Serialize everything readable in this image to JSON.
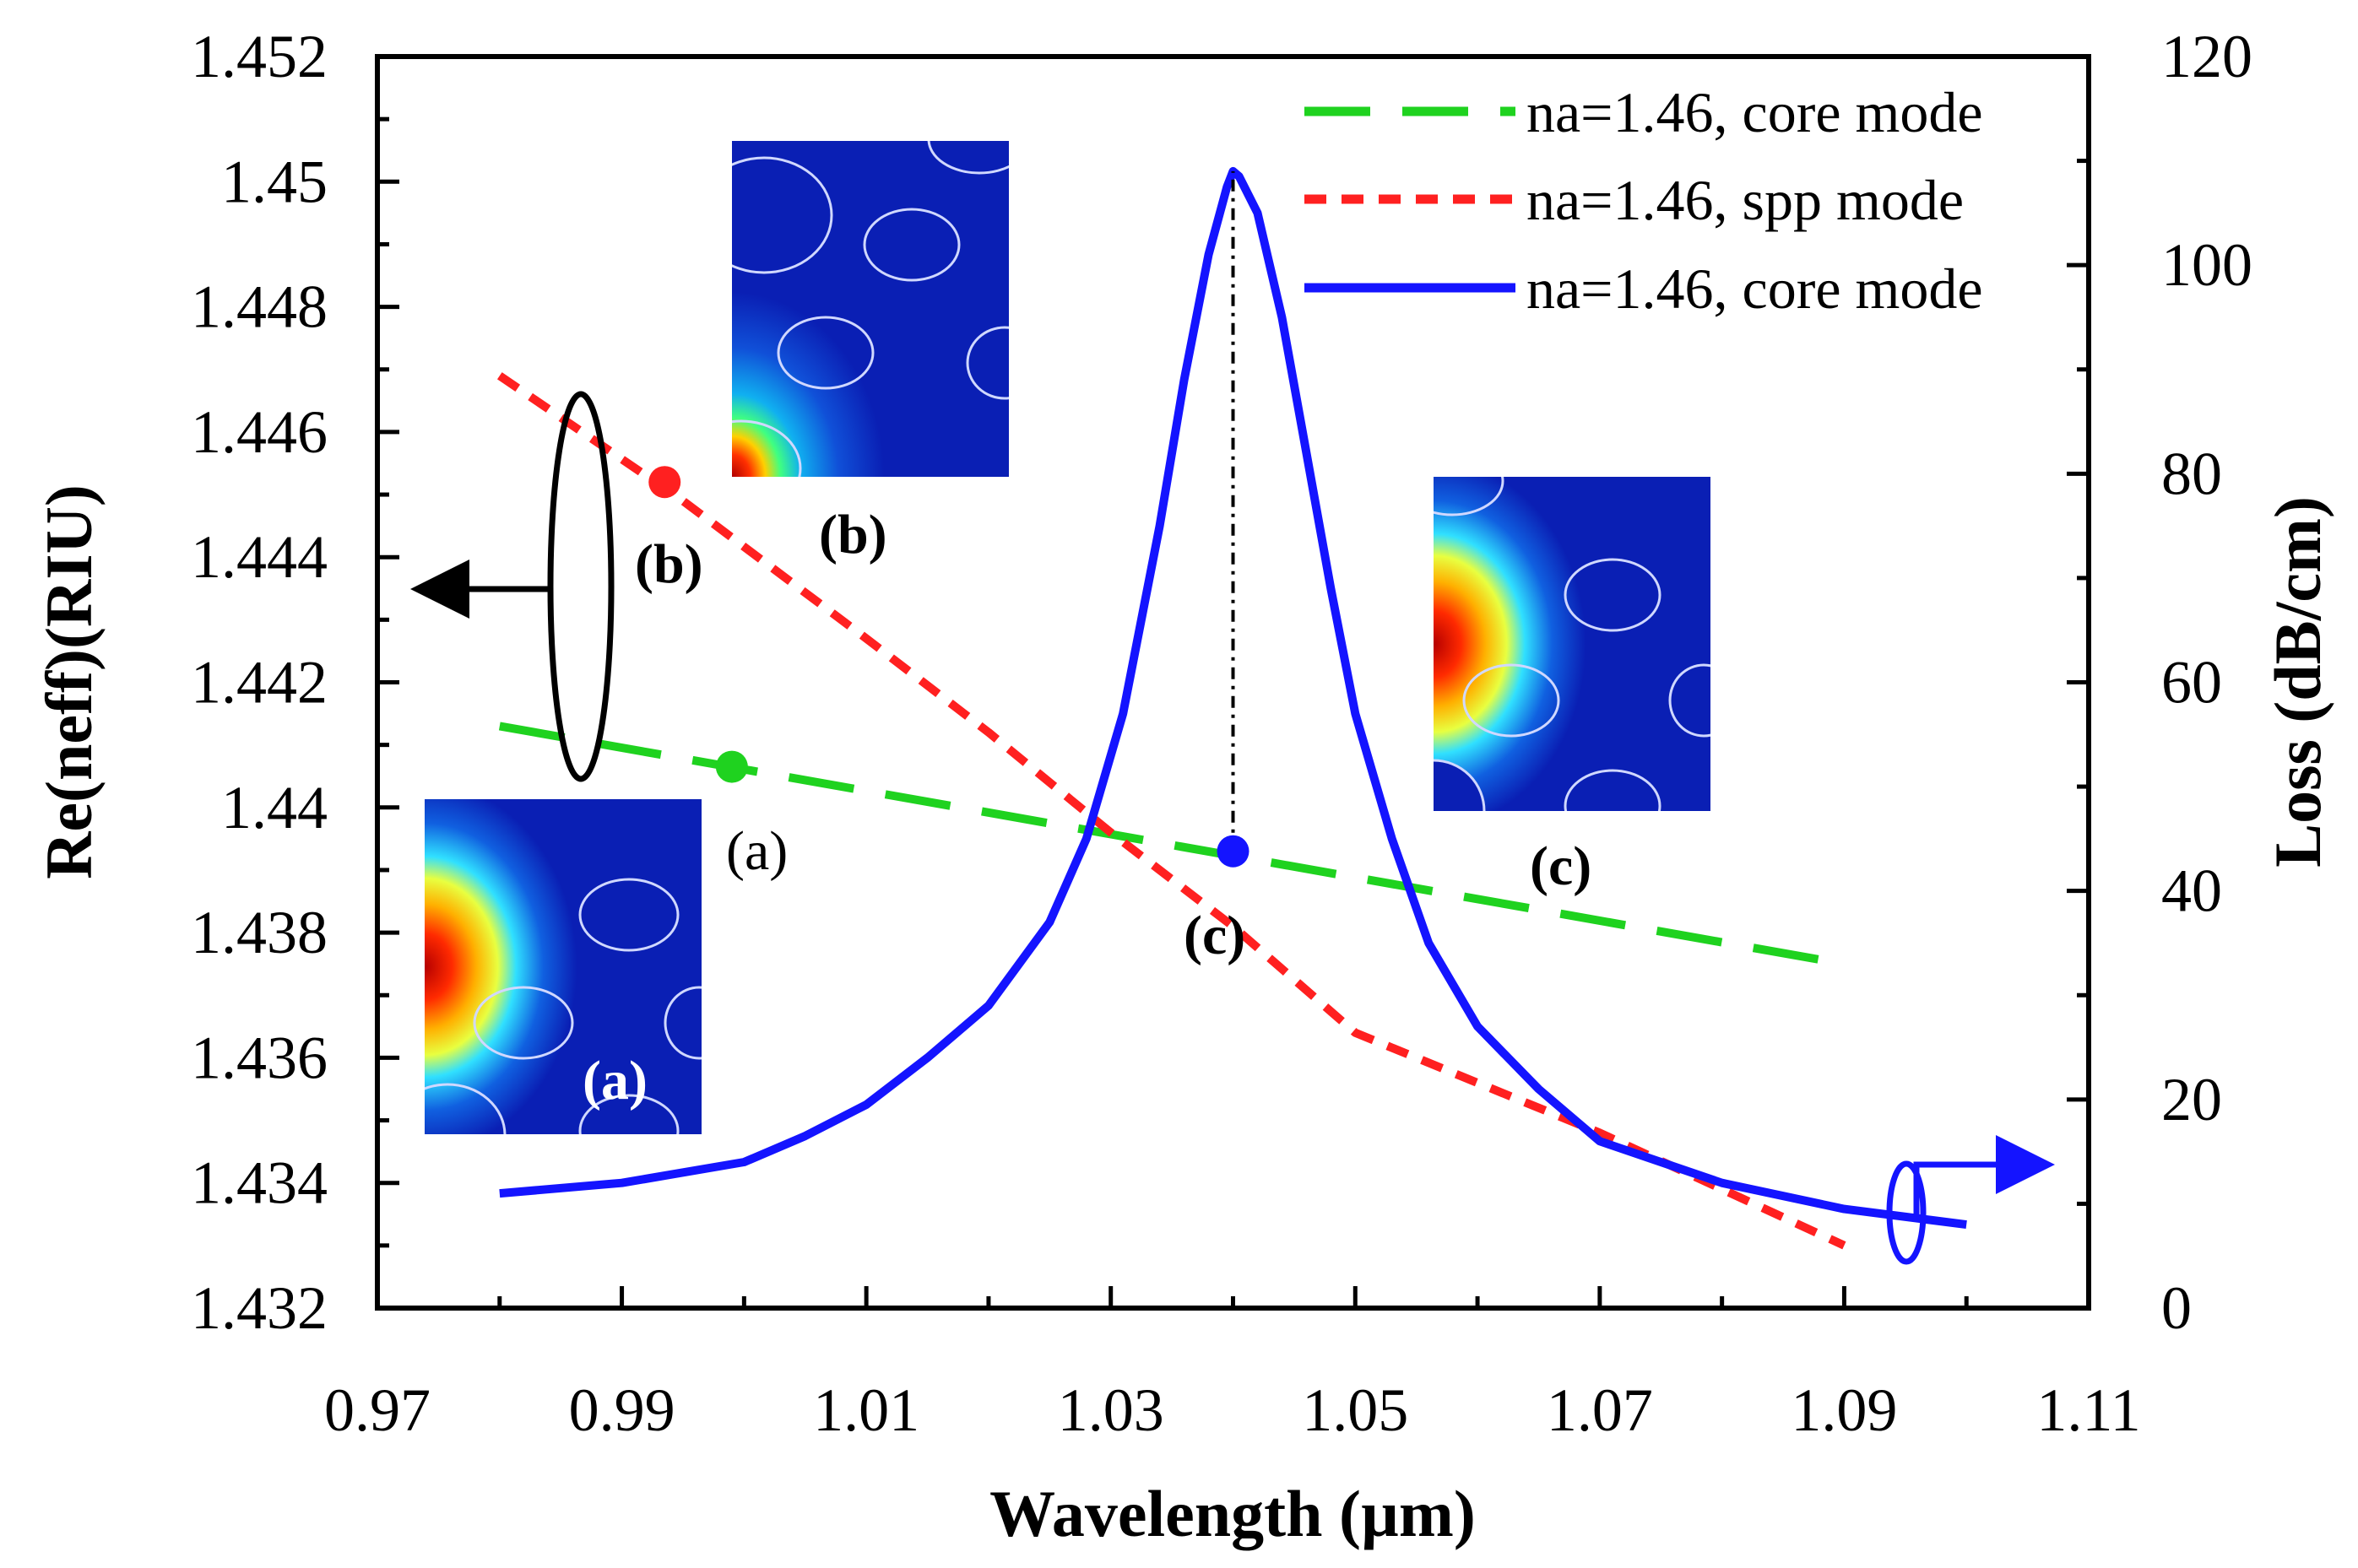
{
  "chart_data": {
    "type": "line",
    "xlabel": "Wavelength (µm)",
    "ylabel_left": "Re(neff)(RIU)",
    "ylabel_right": "Loss (dB/cm)",
    "xlim": [
      0.97,
      1.11
    ],
    "ylim_left": [
      1.432,
      1.452
    ],
    "ylim_right": [
      0,
      120
    ],
    "x_ticks": [
      0.97,
      0.99,
      1.01,
      1.03,
      1.05,
      1.07,
      1.09,
      1.11
    ],
    "x_tick_labels": [
      "0.97",
      "0.99",
      "1.01",
      "1.03",
      "1.05",
      "1.07",
      "1.09",
      "1.11"
    ],
    "y_left_ticks": [
      1.432,
      1.434,
      1.436,
      1.438,
      1.44,
      1.442,
      1.444,
      1.446,
      1.448,
      1.45,
      1.452
    ],
    "y_left_tick_labels": [
      "1.432",
      "1.434",
      "1.436",
      "1.438",
      "1.44",
      "1.442",
      "1.444",
      "1.446",
      "1.448",
      "1.45",
      "1.452"
    ],
    "y_right_ticks": [
      0,
      20,
      40,
      60,
      80,
      100,
      120
    ],
    "y_right_tick_labels": [
      "0",
      "20",
      "40",
      "60",
      "80",
      "100",
      "120"
    ],
    "legend_position": "top-right",
    "series": [
      {
        "name": "na=1.46, core mode",
        "axis": "left",
        "color": "#1fd21f",
        "style": "long-dash",
        "x": [
          0.98,
          1.09
        ],
        "y": [
          1.4413,
          1.4375
        ]
      },
      {
        "name": "na=1.46, spp mode",
        "axis": "left",
        "color": "#ff2020",
        "style": "short-dash",
        "x": [
          0.98,
          0.995,
          1.01,
          1.02,
          1.03,
          1.04,
          1.05,
          1.06,
          1.07,
          1.08,
          1.09
        ],
        "y": [
          1.4469,
          1.4449,
          1.4427,
          1.4412,
          1.4396,
          1.4381,
          1.4364,
          1.4356,
          1.4348,
          1.4339,
          1.433
        ]
      },
      {
        "name": "na=1.46, core mode",
        "axis": "right",
        "color": "#1414ff",
        "style": "solid",
        "x": [
          0.98,
          0.99,
          1.0,
          1.005,
          1.01,
          1.015,
          1.02,
          1.025,
          1.028,
          1.031,
          1.034,
          1.036,
          1.038,
          1.0395,
          1.04,
          1.0405,
          1.042,
          1.044,
          1.046,
          1.048,
          1.05,
          1.053,
          1.056,
          1.06,
          1.065,
          1.07,
          1.08,
          1.09,
          1.1
        ],
        "y": [
          11,
          12,
          14,
          16.5,
          19.5,
          24,
          29,
          37,
          45,
          57,
          75,
          89,
          101,
          107.5,
          109,
          108.5,
          105,
          95,
          82,
          69,
          57,
          45,
          35,
          27,
          21,
          16,
          12,
          9.5,
          8
        ]
      }
    ],
    "markers": [
      {
        "label": "(a)",
        "axis": "left",
        "x": 0.999,
        "y": 1.44065,
        "color": "#1fd21f"
      },
      {
        "label": "(b)",
        "axis": "left",
        "x": 0.9935,
        "y": 1.4452,
        "color": "#ff2020"
      },
      {
        "label": "(c)",
        "axis": "left",
        "x": 1.04,
        "y": 1.4393,
        "color": "#1414ff"
      }
    ],
    "insets": [
      {
        "label": "(a)"
      },
      {
        "label": "(b)"
      },
      {
        "label": "(c)"
      }
    ]
  }
}
